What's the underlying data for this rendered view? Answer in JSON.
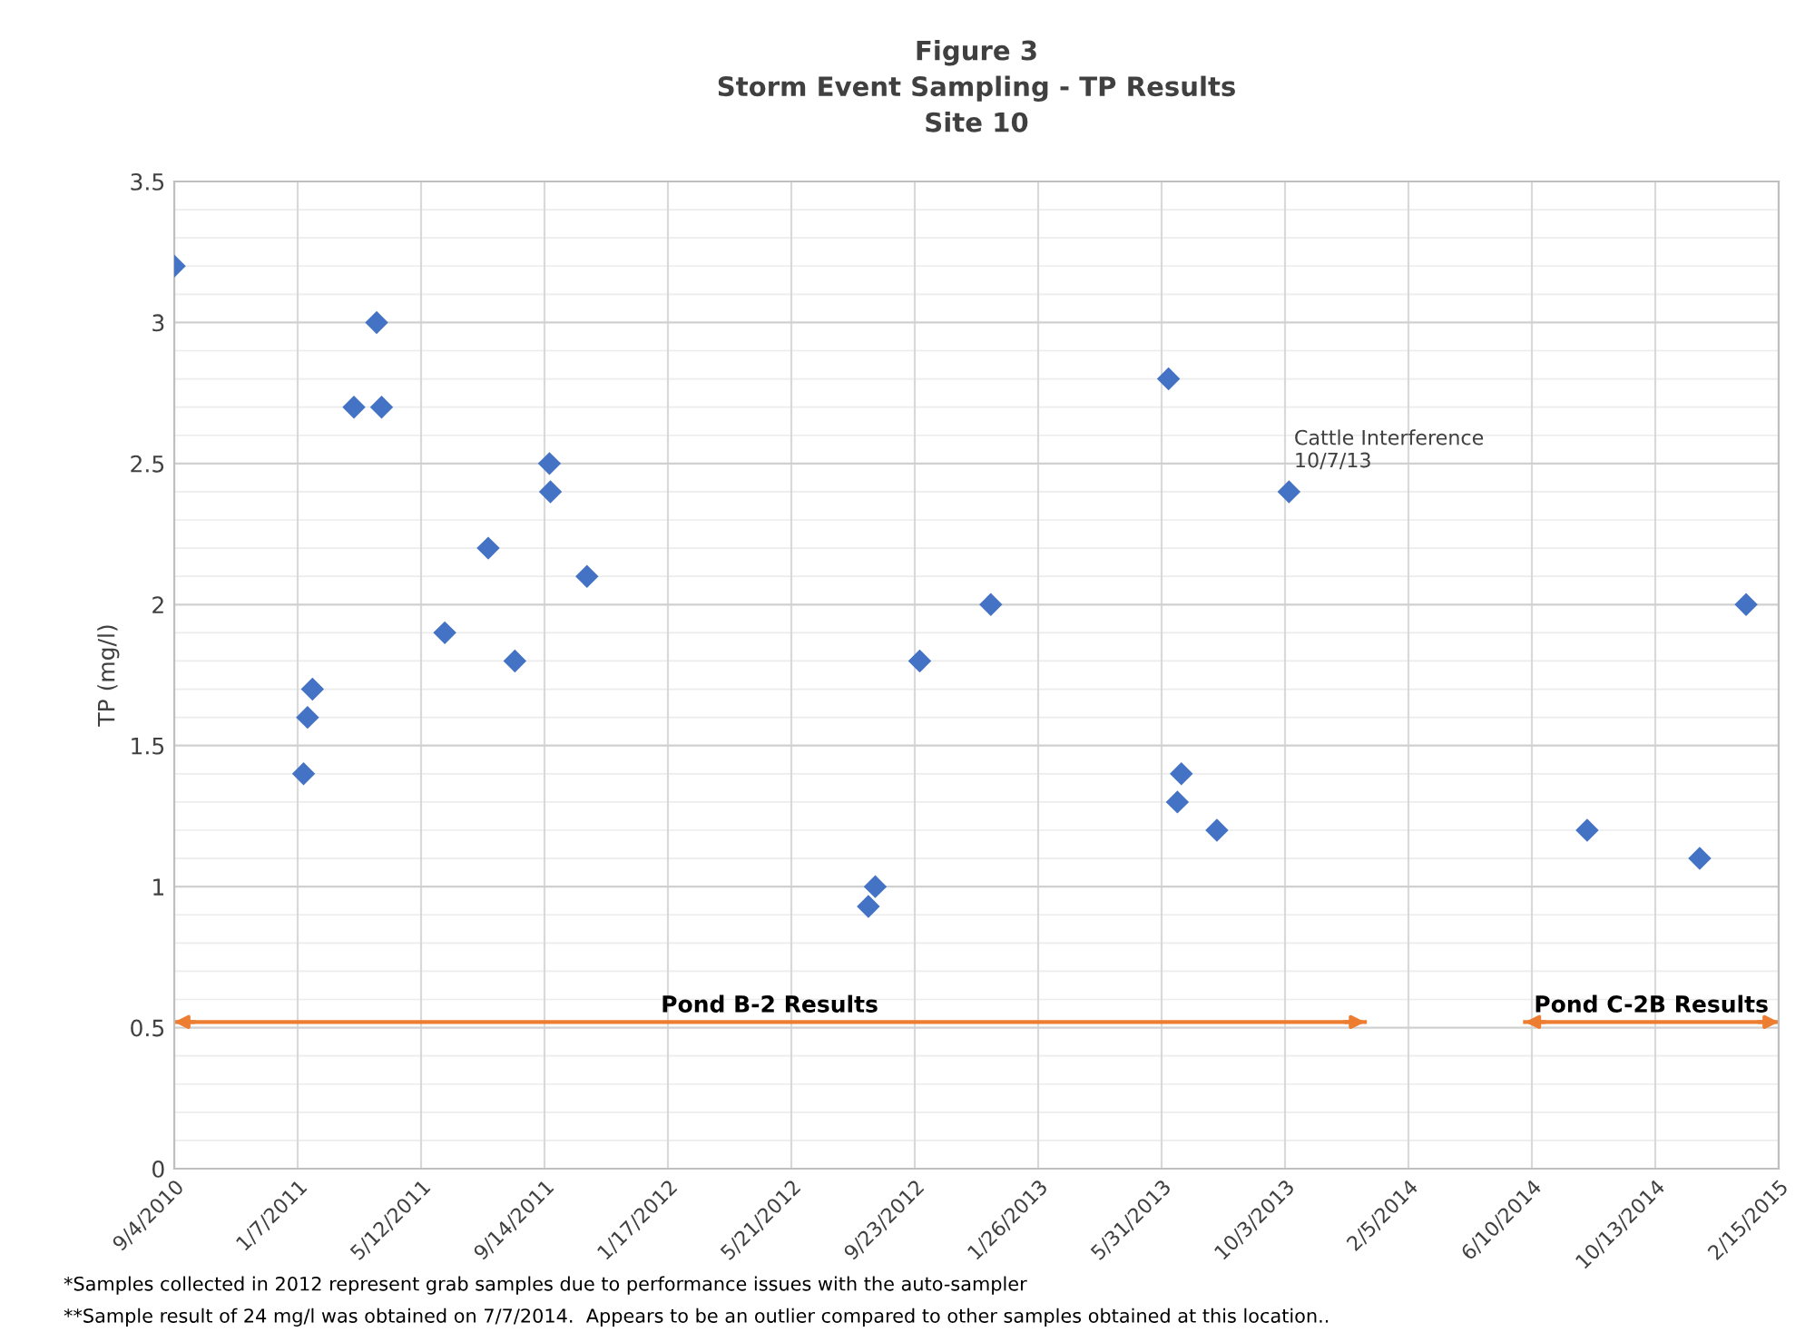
{
  "chart_data": {
    "type": "scatter",
    "title": "Figure 3\nStorm Event Sampling - TP Results\nSite 10",
    "ylabel": "TP (mg/l)",
    "x": [
      "2010-09-04",
      "2011-01-13",
      "2011-01-17",
      "2011-01-22",
      "2011-03-05",
      "2011-03-28",
      "2011-04-02",
      "2011-06-05",
      "2011-07-19",
      "2011-08-15",
      "2011-09-19",
      "2011-09-20",
      "2011-10-27",
      "2012-08-07",
      "2012-08-14",
      "2012-09-28",
      "2012-12-09",
      "2013-06-07",
      "2013-06-16",
      "2013-06-20",
      "2013-07-26",
      "2013-10-07",
      "2014-08-05",
      "2014-11-27",
      "2015-01-13"
    ],
    "series": [
      {
        "color": "#4472c4",
        "marker": "diamond",
        "values": [
          3.2,
          1.4,
          1.6,
          1.7,
          2.7,
          3.0,
          2.7,
          1.9,
          2.2,
          1.8,
          2.5,
          2.4,
          2.1,
          0.93,
          1.0,
          1.8,
          2.0,
          2.8,
          1.3,
          1.4,
          1.2,
          2.4,
          1.2,
          1.1,
          2.0
        ]
      },
      {
        "type": "line",
        "color": "#ed7d31",
        "marker": "none",
        "x": [
          "2010-09-04",
          "2013-12-23"
        ],
        "values": [
          0.52,
          0.52
        ]
      },
      {
        "type": "line",
        "color": "#ed7d31",
        "marker": "none",
        "x": [
          "2014-06-03",
          "2015-02-15"
        ],
        "values": [
          0.52,
          0.52
        ]
      }
    ],
    "xlim": [
      "2010-09-04",
      "2015-02-15"
    ],
    "xticks": [
      {
        "value": "2010-09-04",
        "label": "9/4/2010"
      },
      {
        "value": "2011-01-07",
        "label": "1/7/2011"
      },
      {
        "value": "2011-05-12",
        "label": "5/12/2011"
      },
      {
        "value": "2011-09-14",
        "label": "9/14/2011"
      },
      {
        "value": "2012-01-17",
        "label": "1/17/2012"
      },
      {
        "value": "2012-05-21",
        "label": "5/21/2012"
      },
      {
        "value": "2012-09-23",
        "label": "9/23/2012"
      },
      {
        "value": "2013-01-26",
        "label": "1/26/2013"
      },
      {
        "value": "2013-05-31",
        "label": "5/31/2013"
      },
      {
        "value": "2013-10-03",
        "label": "10/3/2013"
      },
      {
        "value": "2014-02-05",
        "label": "2/5/2014"
      },
      {
        "value": "2014-06-10",
        "label": "6/10/2014"
      },
      {
        "value": "2014-10-13",
        "label": "10/13/2014"
      },
      {
        "value": "2015-02-15",
        "label": "2/15/2015"
      }
    ],
    "ylim": [
      0,
      3.5
    ],
    "yticks": [
      0,
      0.5,
      1,
      1.5,
      2,
      2.5,
      3,
      3.5
    ],
    "grid": true,
    "annotations": [
      {
        "text": "Cattle Interference\n10/7/13",
        "x": "2013-10-07",
        "y": 2.4
      },
      {
        "text": "Pond B-2 Results",
        "x": "2012-04-29",
        "y": 0.52
      },
      {
        "text": "Pond C-2B Results",
        "x": "2014-10-09",
        "y": 0.52
      },
      "*Samples collected in 2012 represent grab samples due to performance issues with the auto-sampler",
      "**Sample result of 24 mg/l was obtained on 7/7/2014.  Appears to be an outlier compared to other samples obtained at this location.."
    ]
  }
}
